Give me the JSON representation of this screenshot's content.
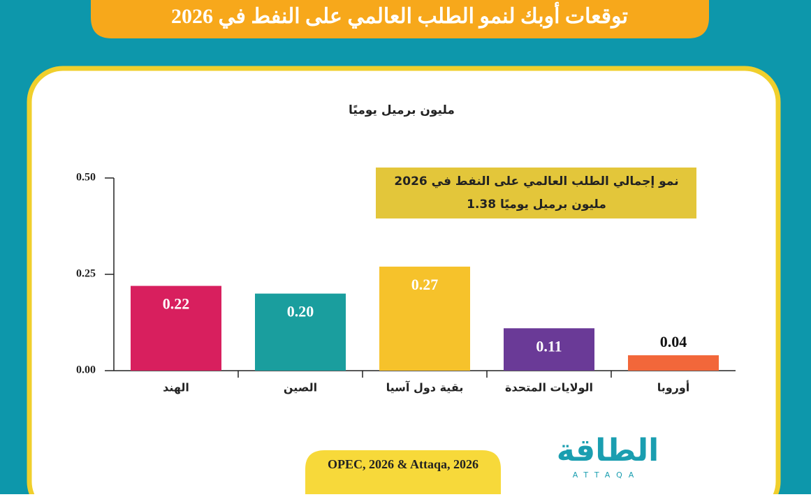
{
  "title": "توقعات أوبك لنمو الطلب العالمي على النفط في 2026",
  "source": "OPEC, 2026 & Attaqa, 2026",
  "brand": {
    "name": "الطاقة",
    "latin": "ATTAQA"
  },
  "chart_data": {
    "type": "bar",
    "y_label": "مليون برميل يوميًا",
    "annotation": [
      "نمو إجمالي الطلب العالمي على النفط في 2026",
      "1.38  مليون برميل يوميًا"
    ],
    "categories": [
      "الهند",
      "الصين",
      "بقية دول آسيا",
      "الولايات المتحدة",
      "أوروبا"
    ],
    "values": [
      0.22,
      0.2,
      0.27,
      0.11,
      0.04
    ],
    "value_labels": [
      "0.22",
      "0.20",
      "0.27",
      "0.11",
      "0.04"
    ],
    "colors": [
      "#d81f5e",
      "#1a9e9e",
      "#f6c22b",
      "#6a3a97",
      "#f2673a"
    ],
    "ylim": [
      0,
      0.5
    ],
    "yticks": [
      {
        "value": 0,
        "label": "0.00"
      },
      {
        "value": 0.25,
        "label": "0.25"
      },
      {
        "value": 0.5,
        "label": "0.50"
      }
    ],
    "grid": false
  }
}
